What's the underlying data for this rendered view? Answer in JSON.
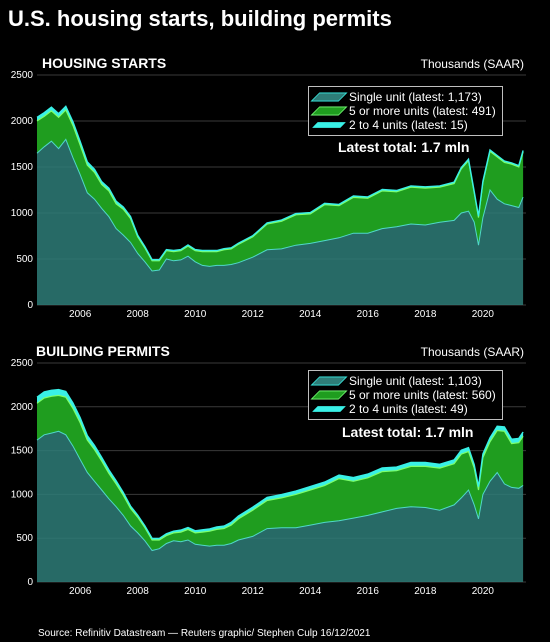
{
  "title": "U.S. housing starts, building permits",
  "source": "Source: Refinitiv Datastream — Reuters graphic/ Stephen Culp 16/12/2021",
  "colors": {
    "background": "#000000",
    "single_unit": "#2e7d78",
    "five_plus": "#1f9d1f",
    "two_to_four": "#39f0e6",
    "grid": "#3a3a3a"
  },
  "chart_data": [
    {
      "type": "area",
      "title": "HOUSING STARTS",
      "unit_label": "Thousands (SAAR)",
      "ylim": [
        0,
        2500
      ],
      "yticks": [
        "0",
        "500",
        "1000",
        "1500",
        "2000",
        "2500"
      ],
      "xlim": [
        2005.0,
        2022.0
      ],
      "xticks": [
        "2006",
        "2008",
        "2010",
        "2012",
        "2014",
        "2016",
        "2018",
        "2020"
      ],
      "stacked": true,
      "annotation": "Latest total: 1.7 mln",
      "legend": [
        {
          "name": "Single unit (latest: 1,173)",
          "color": "#2e7d78"
        },
        {
          "name": "5 or more units (latest: 491)",
          "color": "#1f9d1f"
        },
        {
          "name": "2 to 4 units (latest: 15)",
          "color": "#39f0e6"
        }
      ],
      "x": [
        2005.0,
        2005.25,
        2005.5,
        2005.75,
        2006.0,
        2006.25,
        2006.5,
        2006.75,
        2007.0,
        2007.25,
        2007.5,
        2007.75,
        2008.0,
        2008.25,
        2008.5,
        2008.75,
        2009.0,
        2009.25,
        2009.5,
        2009.75,
        2010.0,
        2010.25,
        2010.5,
        2010.75,
        2011.0,
        2011.25,
        2011.5,
        2011.75,
        2012.0,
        2012.5,
        2013.0,
        2013.5,
        2014.0,
        2014.5,
        2015.0,
        2015.5,
        2016.0,
        2016.5,
        2017.0,
        2017.5,
        2018.0,
        2018.5,
        2019.0,
        2019.5,
        2019.75,
        2020.0,
        2020.2,
        2020.35,
        2020.5,
        2020.75,
        2021.0,
        2021.25,
        2021.5,
        2021.75,
        2021.9
      ],
      "series": [
        {
          "name": "Single unit (latest: 1,173)",
          "values": [
            1650,
            1720,
            1780,
            1700,
            1800,
            1600,
            1420,
            1220,
            1150,
            1050,
            960,
            830,
            760,
            680,
            560,
            470,
            370,
            380,
            500,
            480,
            490,
            530,
            470,
            430,
            420,
            430,
            430,
            440,
            460,
            520,
            600,
            610,
            650,
            670,
            700,
            730,
            780,
            780,
            830,
            850,
            880,
            870,
            900,
            920,
            1000,
            1020,
            900,
            650,
            950,
            1250,
            1150,
            1100,
            1080,
            1060,
            1173
          ]
        },
        {
          "name": "5 or more units (latest: 491)",
          "values": [
            350,
            330,
            330,
            340,
            320,
            350,
            320,
            300,
            290,
            260,
            280,
            270,
            280,
            260,
            180,
            150,
            110,
            100,
            90,
            100,
            100,
            110,
            120,
            150,
            160,
            150,
            170,
            170,
            200,
            220,
            280,
            300,
            330,
            320,
            390,
            350,
            390,
            380,
            410,
            380,
            400,
            400,
            380,
            400,
            480,
            550,
            320,
            300,
            380,
            420,
            460,
            450,
            450,
            440,
            491
          ]
        },
        {
          "name": "2 to 4 units (latest: 15)",
          "values": [
            40,
            40,
            40,
            40,
            40,
            40,
            40,
            35,
            35,
            30,
            30,
            28,
            25,
            22,
            18,
            15,
            12,
            12,
            12,
            12,
            12,
            12,
            12,
            12,
            12,
            12,
            12,
            12,
            12,
            12,
            12,
            14,
            14,
            14,
            14,
            14,
            15,
            15,
            15,
            15,
            15,
            15,
            15,
            15,
            15,
            15,
            15,
            15,
            15,
            15,
            15,
            15,
            15,
            15,
            15
          ]
        }
      ]
    },
    {
      "type": "area",
      "title": "BUILDING PERMITS",
      "unit_label": "Thousands (SAAR)",
      "ylim": [
        0,
        2500
      ],
      "yticks": [
        "0",
        "500",
        "1000",
        "1500",
        "2000",
        "2500"
      ],
      "xlim": [
        2005.0,
        2022.0
      ],
      "xticks": [
        "2006",
        "2008",
        "2010",
        "2012",
        "2014",
        "2016",
        "2018",
        "2020"
      ],
      "stacked": true,
      "annotation": "Latest total: 1.7 mln",
      "legend": [
        {
          "name": "Single unit (latest: 1,103)",
          "color": "#2e7d78"
        },
        {
          "name": "5 or more units (latest: 560)",
          "color": "#1f9d1f"
        },
        {
          "name": "2 to 4 units (latest: 49)",
          "color": "#39f0e6"
        }
      ],
      "x": [
        2005.0,
        2005.25,
        2005.5,
        2005.75,
        2006.0,
        2006.25,
        2006.5,
        2006.75,
        2007.0,
        2007.25,
        2007.5,
        2007.75,
        2008.0,
        2008.25,
        2008.5,
        2008.75,
        2009.0,
        2009.25,
        2009.5,
        2009.75,
        2010.0,
        2010.25,
        2010.5,
        2010.75,
        2011.0,
        2011.25,
        2011.5,
        2011.75,
        2012.0,
        2012.5,
        2013.0,
        2013.5,
        2014.0,
        2014.5,
        2015.0,
        2015.5,
        2016.0,
        2016.5,
        2017.0,
        2017.5,
        2018.0,
        2018.5,
        2019.0,
        2019.5,
        2019.75,
        2020.0,
        2020.2,
        2020.35,
        2020.5,
        2020.75,
        2021.0,
        2021.25,
        2021.5,
        2021.75,
        2021.9
      ],
      "series": [
        {
          "name": "Single unit (latest: 1,103)",
          "values": [
            1620,
            1680,
            1700,
            1720,
            1680,
            1550,
            1400,
            1250,
            1150,
            1050,
            950,
            860,
            760,
            640,
            560,
            470,
            360,
            380,
            440,
            470,
            460,
            480,
            430,
            420,
            410,
            420,
            420,
            440,
            480,
            520,
            610,
            620,
            620,
            650,
            680,
            700,
            730,
            760,
            800,
            840,
            860,
            850,
            820,
            880,
            960,
            1050,
            880,
            720,
            1000,
            1150,
            1250,
            1120,
            1080,
            1070,
            1103
          ]
        },
        {
          "name": "5 or more units (latest: 560)",
          "values": [
            420,
            420,
            420,
            410,
            430,
            430,
            420,
            370,
            360,
            330,
            290,
            260,
            230,
            200,
            180,
            150,
            120,
            100,
            90,
            90,
            110,
            120,
            130,
            150,
            170,
            180,
            190,
            210,
            240,
            300,
            320,
            340,
            380,
            400,
            420,
            480,
            420,
            430,
            460,
            430,
            460,
            470,
            480,
            470,
            500,
            440,
            420,
            330,
            420,
            450,
            480,
            600,
            500,
            520,
            560
          ]
        },
        {
          "name": "2 to 4 units (latest: 49)",
          "values": [
            70,
            70,
            68,
            66,
            65,
            62,
            58,
            52,
            48,
            44,
            40,
            36,
            32,
            28,
            24,
            20,
            18,
            18,
            20,
            20,
            22,
            22,
            24,
            26,
            26,
            28,
            28,
            30,
            32,
            34,
            36,
            38,
            38,
            40,
            40,
            40,
            42,
            42,
            42,
            42,
            44,
            44,
            44,
            44,
            44,
            44,
            40,
            38,
            42,
            46,
            48,
            50,
            50,
            49,
            49
          ]
        }
      ]
    }
  ]
}
